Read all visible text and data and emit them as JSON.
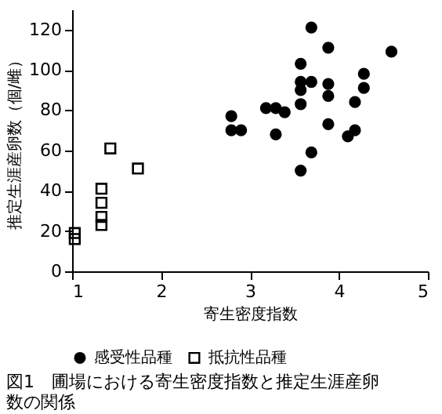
{
  "chart_data": {
    "type": "scatter",
    "title": "図1　圃場における寄生密度指数と推定生涯産卵数の関係",
    "xlabel": "寄生密度指数",
    "ylabel": "推定生涯産卵数（個/雌）",
    "xlim": [
      1,
      5
    ],
    "xticks": [
      1,
      2,
      3,
      4,
      5
    ],
    "ylim": [
      0,
      130
    ],
    "yticks": [
      0,
      20,
      40,
      60,
      80,
      100,
      120
    ],
    "grid": false,
    "legend": "bottom",
    "series": [
      {
        "name": "感受性品種",
        "color": "#000000",
        "marker": "circle",
        "x": [
          3.69,
          3.88,
          4.59,
          3.57,
          4.28,
          3.57,
          3.69,
          3.88,
          4.28,
          3.57,
          3.88,
          4.18,
          3.57,
          3.18,
          3.29,
          3.39,
          2.79,
          2.79,
          2.9,
          3.88,
          4.18,
          4.1,
          3.29,
          3.69,
          3.57
        ],
        "values": [
          121,
          111,
          109,
          103,
          98,
          94,
          94,
          93,
          91,
          90,
          87,
          84,
          83,
          81,
          81,
          79,
          77,
          70,
          70,
          73,
          70,
          67,
          68,
          59,
          50
        ]
      },
      {
        "name": "抵抗性品種",
        "color": "#000000",
        "marker": "square",
        "x": [
          1.43,
          1.74,
          1.33,
          1.33,
          1.33,
          1.33,
          1.03,
          1.03
        ],
        "values": [
          61,
          51,
          41,
          34,
          27,
          23,
          19,
          16
        ]
      }
    ]
  }
}
